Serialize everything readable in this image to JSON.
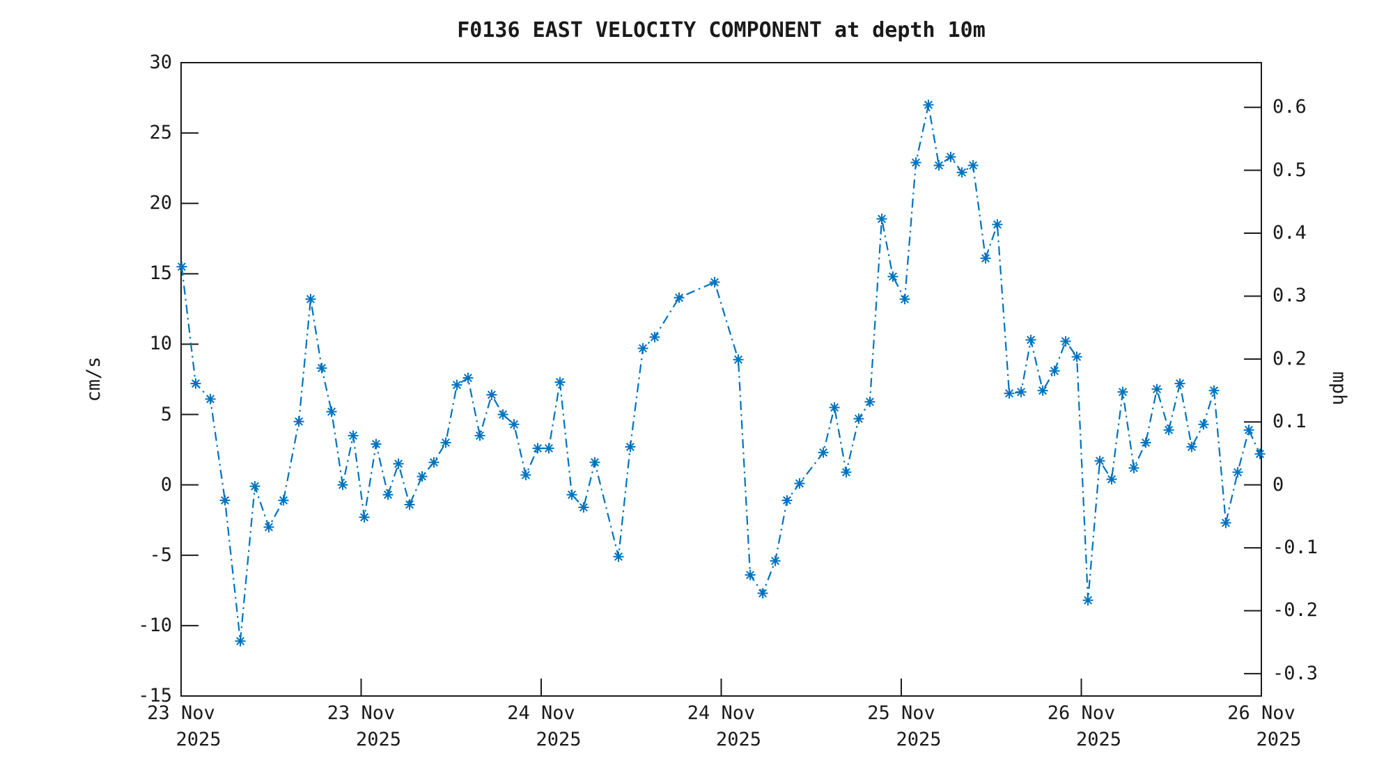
{
  "title": "F0136 EAST VELOCITY COMPONENT at depth 10m",
  "colors": {
    "background": "#ffffff",
    "axis": "#1a1a1a",
    "series_blue": "#0072BD"
  },
  "chart_data": {
    "type": "line",
    "title": "F0136 EAST VELOCITY COMPONENT at depth 10m",
    "grid": "off",
    "legend": "none",
    "left_axis": {
      "label": "cm/s",
      "ticks": [
        30,
        25,
        20,
        15,
        10,
        5,
        0,
        -5,
        -10,
        -15
      ],
      "range": [
        -15,
        30
      ]
    },
    "right_axis": {
      "label": "mph",
      "ticks": [
        0.6,
        0.5,
        0.4,
        0.3,
        0.2,
        0.1,
        0,
        -0.1,
        -0.2,
        -0.3
      ],
      "range": [
        -0.3356,
        0.6711
      ]
    },
    "x_axis": {
      "tick_labels": [
        [
          "23 Nov",
          "2025"
        ],
        [
          "23 Nov",
          "2025"
        ],
        [
          "24 Nov",
          "2025"
        ],
        [
          "24 Nov",
          "2025"
        ],
        [
          "25 Nov",
          "2025"
        ],
        [
          "26 Nov",
          "2025"
        ],
        [
          "26 Nov",
          "2025"
        ]
      ]
    },
    "series": [
      {
        "name": "east velocity component",
        "units": "cm/s",
        "color": "#0072BD",
        "line_style": "dash-dot",
        "marker": "asterisk",
        "points": [
          [
            0.0006,
            15.5
          ],
          [
            0.0135,
            7.2
          ],
          [
            0.0271,
            6.1
          ],
          [
            0.0406,
            -1.1
          ],
          [
            0.0548,
            -11.1
          ],
          [
            0.0683,
            -0.1
          ],
          [
            0.0812,
            -3.0
          ],
          [
            0.0948,
            -1.1
          ],
          [
            0.109,
            4.5
          ],
          [
            0.1199,
            13.2
          ],
          [
            0.1302,
            8.3
          ],
          [
            0.1393,
            5.2
          ],
          [
            0.1496,
            0.0
          ],
          [
            0.1593,
            3.5
          ],
          [
            0.1696,
            -2.3
          ],
          [
            0.1805,
            2.9
          ],
          [
            0.1915,
            -0.7
          ],
          [
            0.2012,
            1.5
          ],
          [
            0.2115,
            -1.4
          ],
          [
            0.2231,
            0.6
          ],
          [
            0.234,
            1.6
          ],
          [
            0.245,
            3.0
          ],
          [
            0.2553,
            7.1
          ],
          [
            0.2656,
            7.6
          ],
          [
            0.2766,
            3.5
          ],
          [
            0.2875,
            6.4
          ],
          [
            0.2979,
            5.0
          ],
          [
            0.3082,
            4.3
          ],
          [
            0.3191,
            0.7
          ],
          [
            0.3301,
            2.6
          ],
          [
            0.3404,
            2.6
          ],
          [
            0.3507,
            7.3
          ],
          [
            0.3617,
            -0.7
          ],
          [
            0.3726,
            -1.6
          ],
          [
            0.383,
            1.6
          ],
          [
            0.4049,
            -5.1
          ],
          [
            0.4158,
            2.7
          ],
          [
            0.4275,
            9.7
          ],
          [
            0.4384,
            10.5
          ],
          [
            0.461,
            13.3
          ],
          [
            0.4939,
            14.4
          ],
          [
            0.5158,
            8.9
          ],
          [
            0.5268,
            -6.4
          ],
          [
            0.5384,
            -7.7
          ],
          [
            0.55,
            -5.4
          ],
          [
            0.5609,
            -1.1
          ],
          [
            0.5725,
            0.1
          ],
          [
            0.5945,
            2.3
          ],
          [
            0.6048,
            5.5
          ],
          [
            0.6157,
            0.9
          ],
          [
            0.6273,
            4.7
          ],
          [
            0.6376,
            5.9
          ],
          [
            0.6486,
            18.9
          ],
          [
            0.6589,
            14.8
          ],
          [
            0.6699,
            13.2
          ],
          [
            0.6802,
            22.9
          ],
          [
            0.6918,
            27.0
          ],
          [
            0.7015,
            22.7
          ],
          [
            0.7124,
            23.3
          ],
          [
            0.7228,
            22.2
          ],
          [
            0.7331,
            22.7
          ],
          [
            0.7447,
            16.1
          ],
          [
            0.7556,
            18.5
          ],
          [
            0.7666,
            6.5
          ],
          [
            0.7776,
            6.6
          ],
          [
            0.7866,
            10.3
          ],
          [
            0.7976,
            6.7
          ],
          [
            0.8085,
            8.1
          ],
          [
            0.8188,
            10.2
          ],
          [
            0.8292,
            9.1
          ],
          [
            0.8395,
            -8.2
          ],
          [
            0.8504,
            1.7
          ],
          [
            0.8614,
            0.4
          ],
          [
            0.8717,
            6.6
          ],
          [
            0.882,
            1.2
          ],
          [
            0.893,
            3.0
          ],
          [
            0.9033,
            6.8
          ],
          [
            0.9143,
            3.9
          ],
          [
            0.9246,
            7.2
          ],
          [
            0.9355,
            2.7
          ],
          [
            0.9465,
            4.3
          ],
          [
            0.9562,
            6.7
          ],
          [
            0.9671,
            -2.7
          ],
          [
            0.9781,
            0.9
          ],
          [
            0.9884,
            3.9
          ],
          [
            0.9987,
            2.2
          ]
        ],
        "x_note": "x values are normalized 0-1 across the time axis (23 Nov 2025 to 26 Nov 2025)"
      }
    ]
  }
}
